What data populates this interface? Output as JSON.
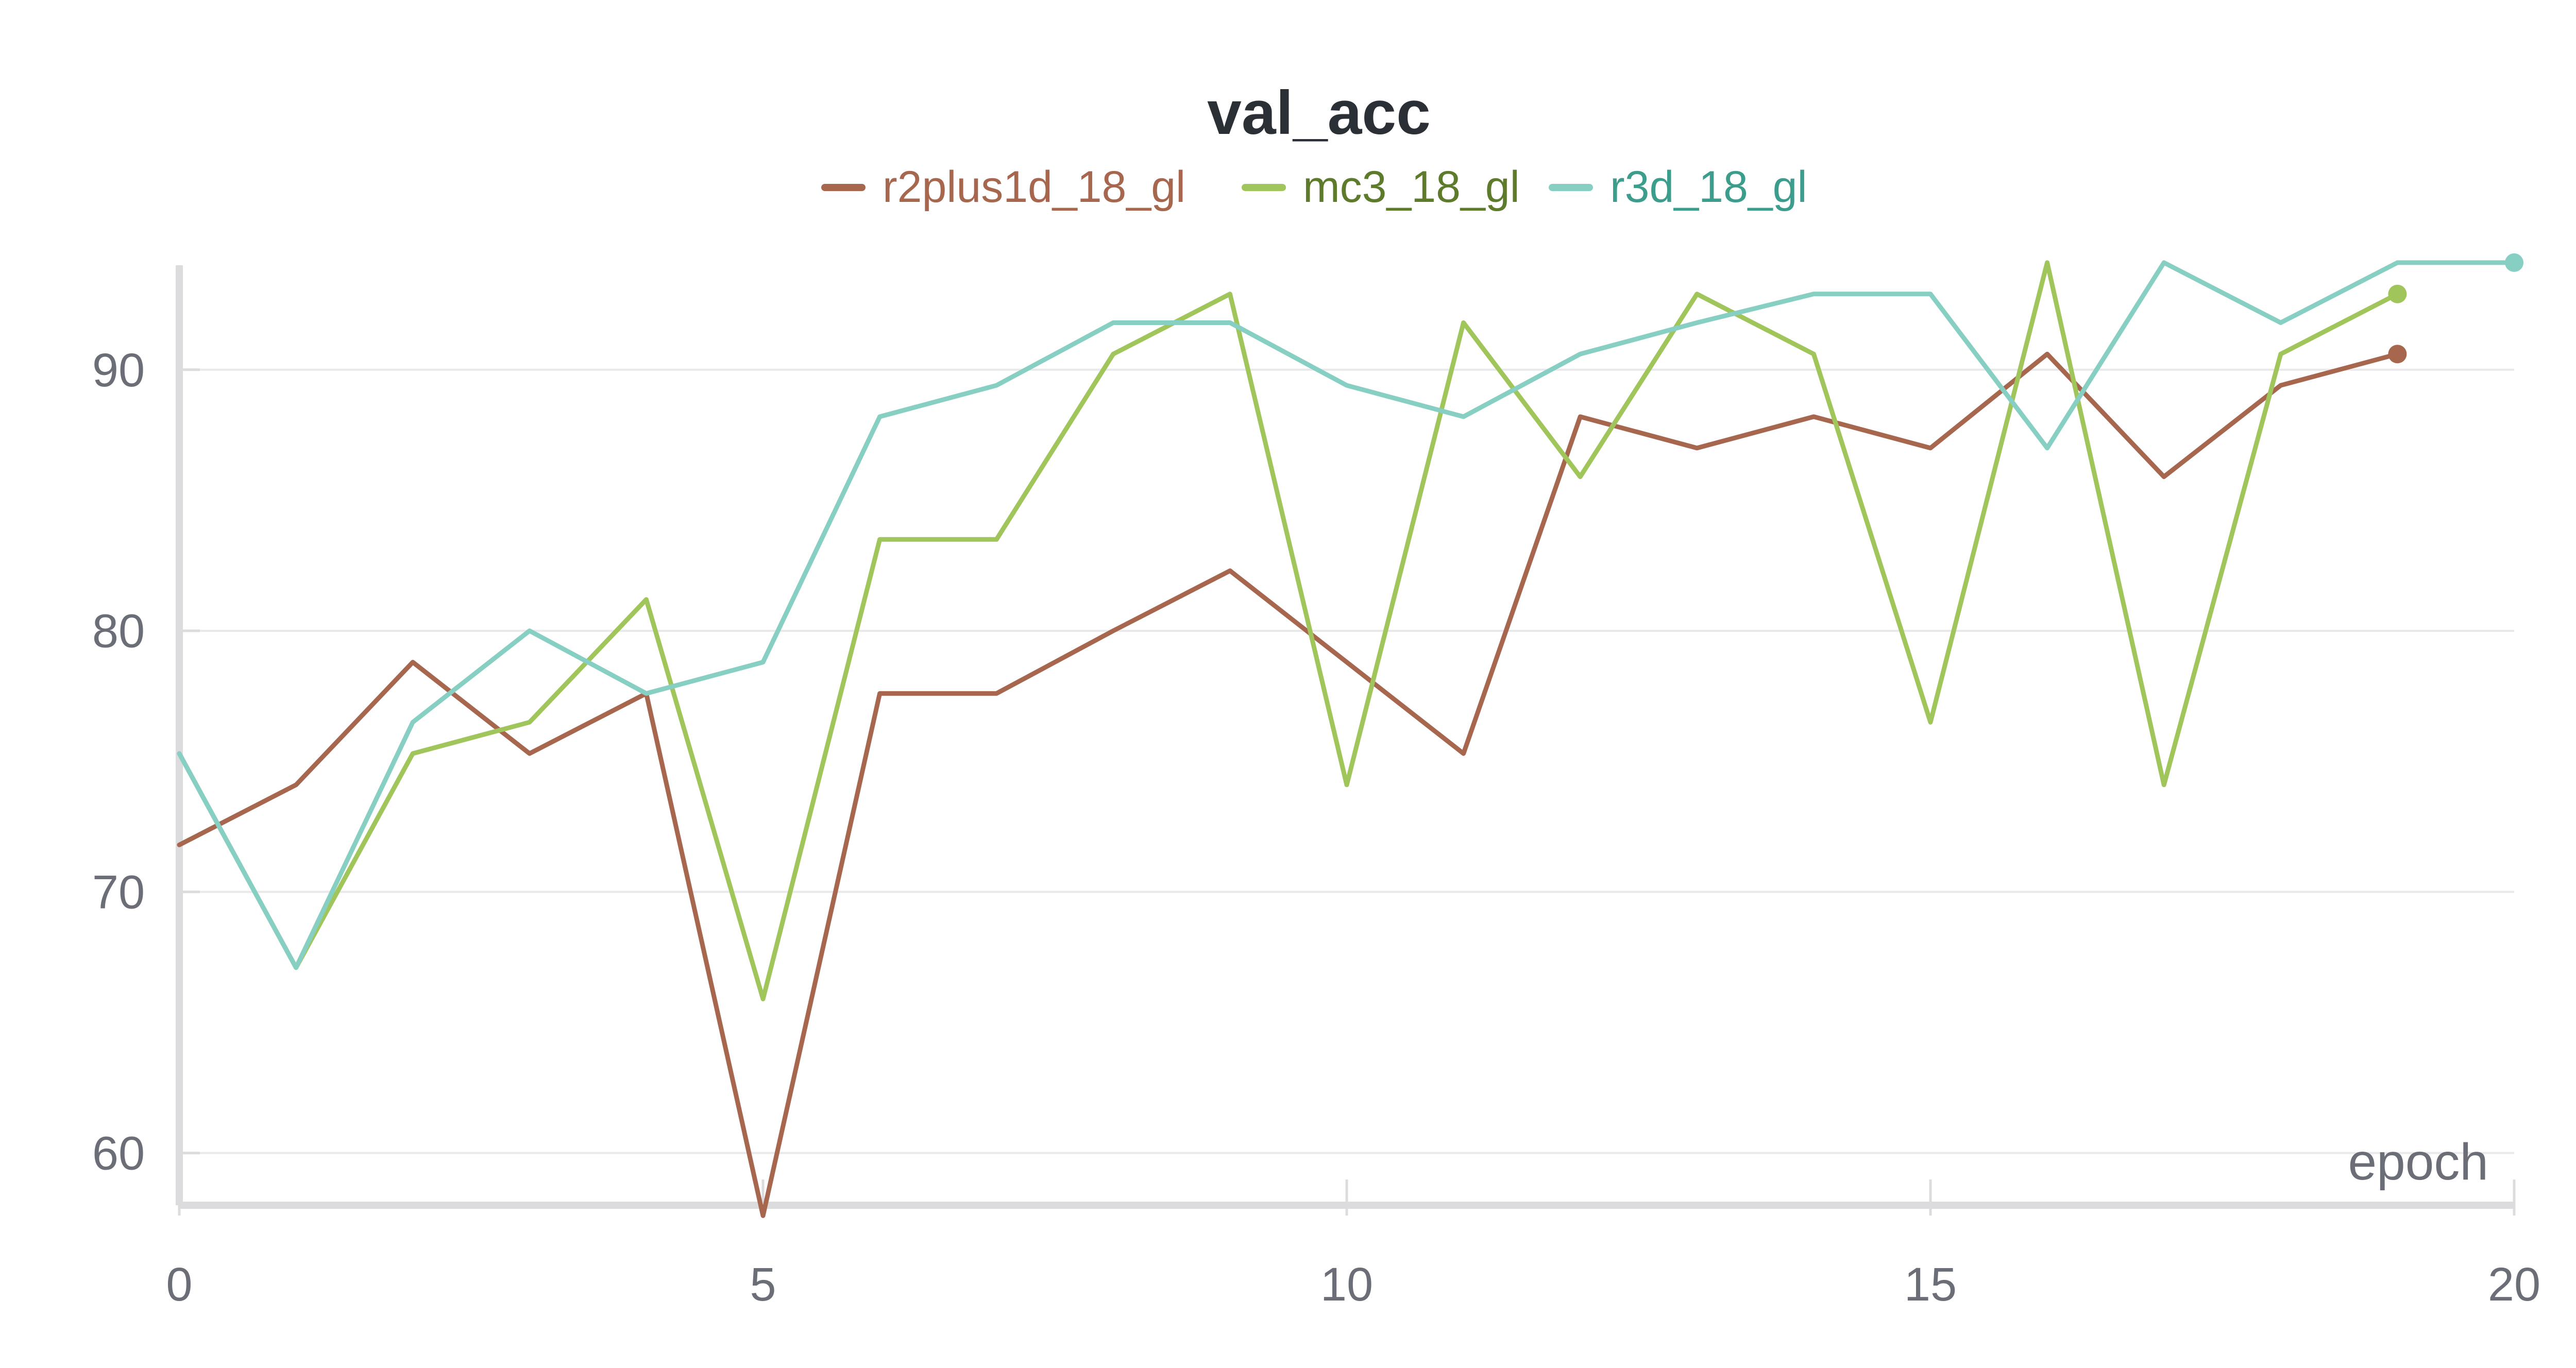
{
  "chart_data": {
    "type": "line",
    "title": "val_acc",
    "xlabel": "epoch",
    "ylabel": "",
    "xlim": [
      0,
      20
    ],
    "ylim": [
      58,
      94
    ],
    "x_ticks": [
      0,
      5,
      10,
      15,
      20
    ],
    "y_ticks": [
      60,
      70,
      80,
      90
    ],
    "grid": true,
    "legend_position": "top-center",
    "series": [
      {
        "name": "r2plus1d_18_gl",
        "color": "#a7674f",
        "label_color": "#a7674f",
        "x": [
          0,
          1,
          2,
          3,
          4,
          5,
          6,
          7,
          8,
          9,
          10,
          11,
          12,
          13,
          14,
          15,
          16,
          17,
          18,
          19
        ],
        "values": [
          71.8,
          74.1,
          78.8,
          75.3,
          77.6,
          57.6,
          77.6,
          77.6,
          80.0,
          82.3,
          78.8,
          75.3,
          88.2,
          87.0,
          88.2,
          87.0,
          90.6,
          85.9,
          89.4,
          90.6
        ]
      },
      {
        "name": "mc3_18_gl",
        "color": "#a0c55a",
        "label_color": "#5e7a2b",
        "x": [
          0,
          1,
          2,
          3,
          4,
          5,
          6,
          7,
          8,
          9,
          10,
          11,
          12,
          13,
          14,
          15,
          16,
          17,
          18,
          19
        ],
        "values": [
          75.3,
          67.1,
          75.3,
          76.5,
          81.2,
          65.9,
          83.5,
          83.5,
          90.6,
          92.9,
          74.1,
          91.8,
          85.9,
          92.9,
          90.6,
          76.5,
          94.1,
          74.1,
          90.6,
          92.9
        ]
      },
      {
        "name": "r3d_18_gl",
        "color": "#86cfc2",
        "label_color": "#3d9d8d",
        "x": [
          0,
          1,
          2,
          3,
          4,
          5,
          6,
          7,
          8,
          9,
          10,
          11,
          12,
          13,
          14,
          15,
          16,
          17,
          18,
          19,
          20
        ],
        "values": [
          75.3,
          67.1,
          76.5,
          80.0,
          77.6,
          78.8,
          88.2,
          89.4,
          91.8,
          91.8,
          89.4,
          88.2,
          90.6,
          91.8,
          92.9,
          92.9,
          87.0,
          94.1,
          91.8,
          94.1,
          94.1
        ]
      }
    ]
  }
}
